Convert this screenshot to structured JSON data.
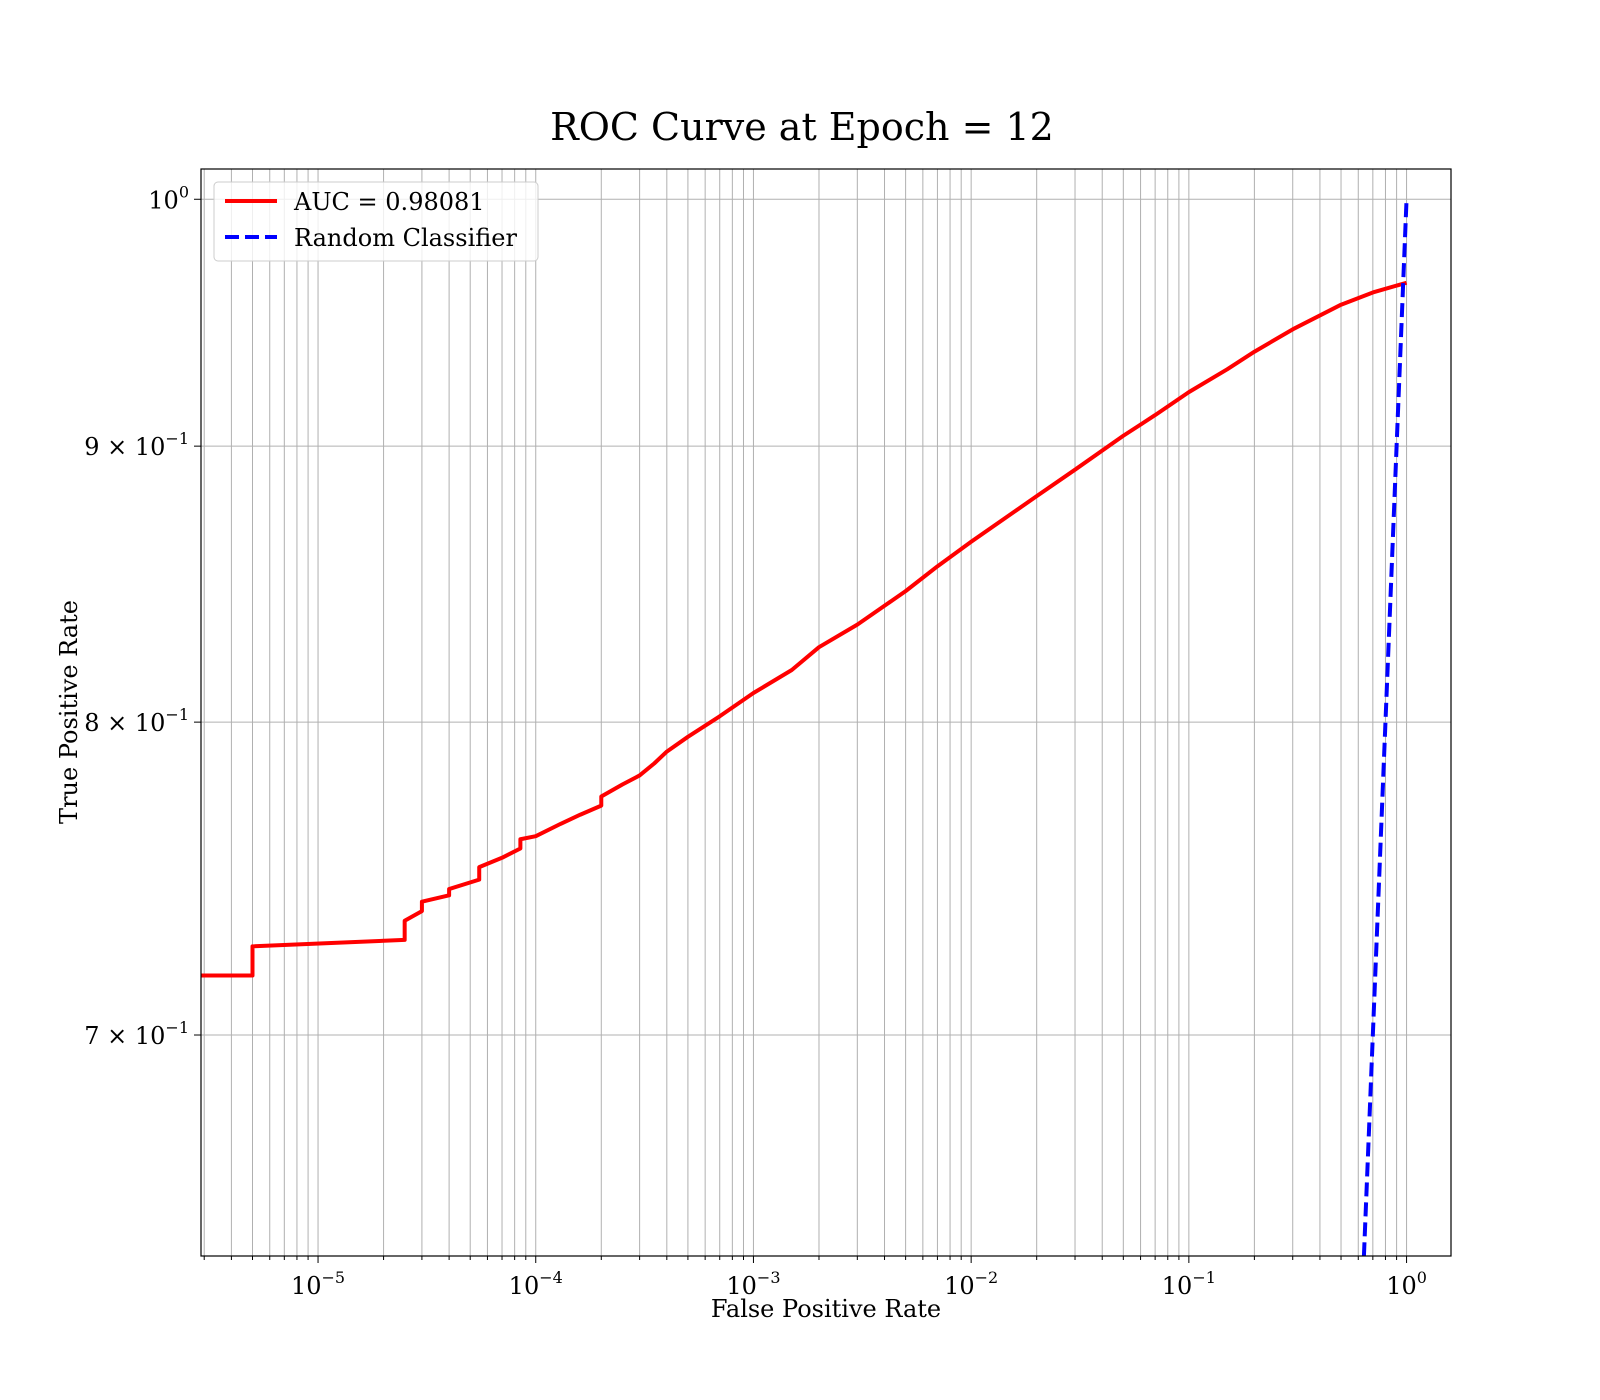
{
  "chart_data": {
    "type": "line",
    "title": "ROC Curve at Epoch = 12",
    "xlabel": "False Positive Rate",
    "ylabel": "True Positive Rate",
    "xscale": "log",
    "yscale": "log",
    "xlim": [
      2.9e-06,
      1.6
    ],
    "ylim": [
      0.637,
      1.013
    ],
    "grid": true,
    "grid_which": "both",
    "legend_position": "upper-left",
    "x_ticks": [
      {
        "value": 1e-05,
        "base": "10",
        "exp": "−5"
      },
      {
        "value": 0.0001,
        "base": "10",
        "exp": "−4"
      },
      {
        "value": 0.001,
        "base": "10",
        "exp": "−3"
      },
      {
        "value": 0.01,
        "base": "10",
        "exp": "−2"
      },
      {
        "value": 0.1,
        "base": "10",
        "exp": "−1"
      },
      {
        "value": 1,
        "base": "10",
        "exp": "0"
      }
    ],
    "y_ticks": [
      {
        "value": 1.0,
        "base": "10",
        "exp": "0"
      },
      {
        "value": 0.9,
        "base": "9 × 10",
        "exp": "−1"
      },
      {
        "value": 0.8,
        "base": "8 × 10",
        "exp": "−1"
      },
      {
        "value": 0.7,
        "base": "7 × 10",
        "exp": "−1"
      }
    ],
    "series": [
      {
        "name": "AUC = 0.98081",
        "color": "#ff0000",
        "style": "solid",
        "x": [
          2.9e-06,
          5e-06,
          5e-06,
          2.5e-05,
          2.5e-05,
          3e-05,
          3e-05,
          4e-05,
          4e-05,
          5.5e-05,
          5.5e-05,
          7e-05,
          8.5e-05,
          8.5e-05,
          0.0001,
          0.00013,
          0.00016,
          0.0002,
          0.0002,
          0.00025,
          0.0003,
          0.00035,
          0.0004,
          0.0005,
          0.0007,
          0.001,
          0.0015,
          0.002,
          0.003,
          0.005,
          0.007,
          0.01,
          0.02,
          0.03,
          0.05,
          0.07,
          0.1,
          0.15,
          0.2,
          0.3,
          0.5,
          0.7,
          1.0
        ],
        "y": [
          0.718,
          0.718,
          0.727,
          0.729,
          0.735,
          0.738,
          0.741,
          0.743,
          0.745,
          0.748,
          0.752,
          0.755,
          0.758,
          0.761,
          0.762,
          0.766,
          0.769,
          0.772,
          0.775,
          0.779,
          0.782,
          0.786,
          0.79,
          0.795,
          0.802,
          0.81,
          0.818,
          0.826,
          0.834,
          0.846,
          0.855,
          0.864,
          0.881,
          0.891,
          0.904,
          0.912,
          0.921,
          0.93,
          0.937,
          0.946,
          0.956,
          0.961,
          0.965
        ]
      },
      {
        "name": "Random Classifier",
        "color": "#0000ff",
        "style": "dashed",
        "x": [
          0.6,
          1.0
        ],
        "y": [
          0.6,
          1.0
        ]
      }
    ]
  }
}
